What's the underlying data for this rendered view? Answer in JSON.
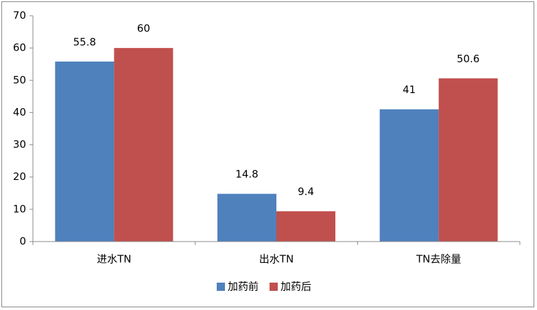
{
  "chart_data": {
    "type": "bar",
    "categories": [
      "进水TN",
      "出水TN",
      "TN去除量"
    ],
    "series": [
      {
        "name": "加药前",
        "color": "#4f81bd",
        "values": [
          55.8,
          14.8,
          41
        ]
      },
      {
        "name": "加药后",
        "color": "#c0504d",
        "values": [
          60,
          9.4,
          50.6
        ]
      }
    ],
    "ylim": [
      0,
      70
    ],
    "yticks": [
      0,
      10,
      20,
      30,
      40,
      50,
      60,
      70
    ],
    "grid": false,
    "legend": "bottom"
  }
}
